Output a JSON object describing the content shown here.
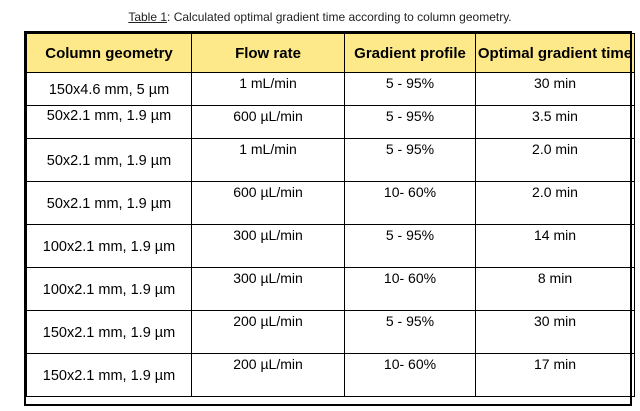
{
  "caption": {
    "label": "Table 1",
    "text": ": Calculated optimal gradient time according to column geometry."
  },
  "table": {
    "headers": [
      "Column geometry",
      "Flow rate",
      "Gradient profile",
      "Optimal gradient time"
    ],
    "rows": [
      [
        "150x4.6 mm, 5 µm",
        "1 mL/min",
        "5 - 95%",
        "30 min"
      ],
      [
        "50x2.1 mm, 1.9 µm",
        "600 µL/min",
        "5 - 95%",
        "3.5 min"
      ],
      [
        "50x2.1 mm, 1.9 µm",
        "1 mL/min",
        "5 - 95%",
        "2.0 min"
      ],
      [
        "50x2.1 mm, 1.9 µm",
        "600 µL/min",
        "10- 60%",
        "2.0 min"
      ],
      [
        "100x2.1 mm, 1.9 µm",
        "300 µL/min",
        "5 - 95%",
        "14 min"
      ],
      [
        "100x2.1 mm, 1.9 µm",
        "300 µL/min",
        "10- 60%",
        "8 min"
      ],
      [
        "150x2.1 mm, 1.9 µm",
        "200 µL/min",
        "5 - 95%",
        "30 min"
      ],
      [
        "150x2.1 mm, 1.9 µm",
        "200 µL/min",
        "10- 60%",
        "17 min"
      ]
    ]
  }
}
